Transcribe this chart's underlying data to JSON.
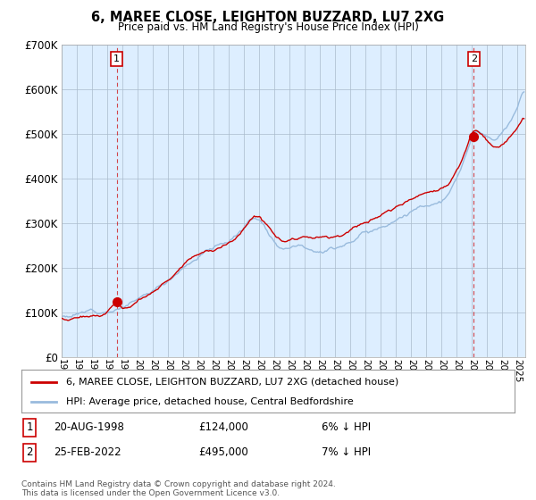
{
  "title": "6, MAREE CLOSE, LEIGHTON BUZZARD, LU7 2XG",
  "subtitle": "Price paid vs. HM Land Registry's House Price Index (HPI)",
  "hpi_label": "HPI: Average price, detached house, Central Bedfordshire",
  "price_label": "6, MAREE CLOSE, LEIGHTON BUZZARD, LU7 2XG (detached house)",
  "legend_footnote": "Contains HM Land Registry data © Crown copyright and database right 2024.\nThis data is licensed under the Open Government Licence v3.0.",
  "sale1_date": "20-AUG-1998",
  "sale1_price": 124000,
  "sale1_note": "6% ↓ HPI",
  "sale2_date": "25-FEB-2022",
  "sale2_price": 495000,
  "sale2_note": "7% ↓ HPI",
  "sale1_x": 1998.63,
  "sale2_x": 2022.12,
  "price_color": "#cc0000",
  "hpi_color": "#99bbdd",
  "plot_bg_color": "#ddeeff",
  "background_color": "#ffffff",
  "grid_color": "#aabbcc",
  "ylim": [
    0,
    700000
  ],
  "yticks": [
    0,
    100000,
    200000,
    300000,
    400000,
    500000,
    600000,
    700000
  ],
  "xlim_start": 1995.0,
  "xlim_end": 2025.5
}
